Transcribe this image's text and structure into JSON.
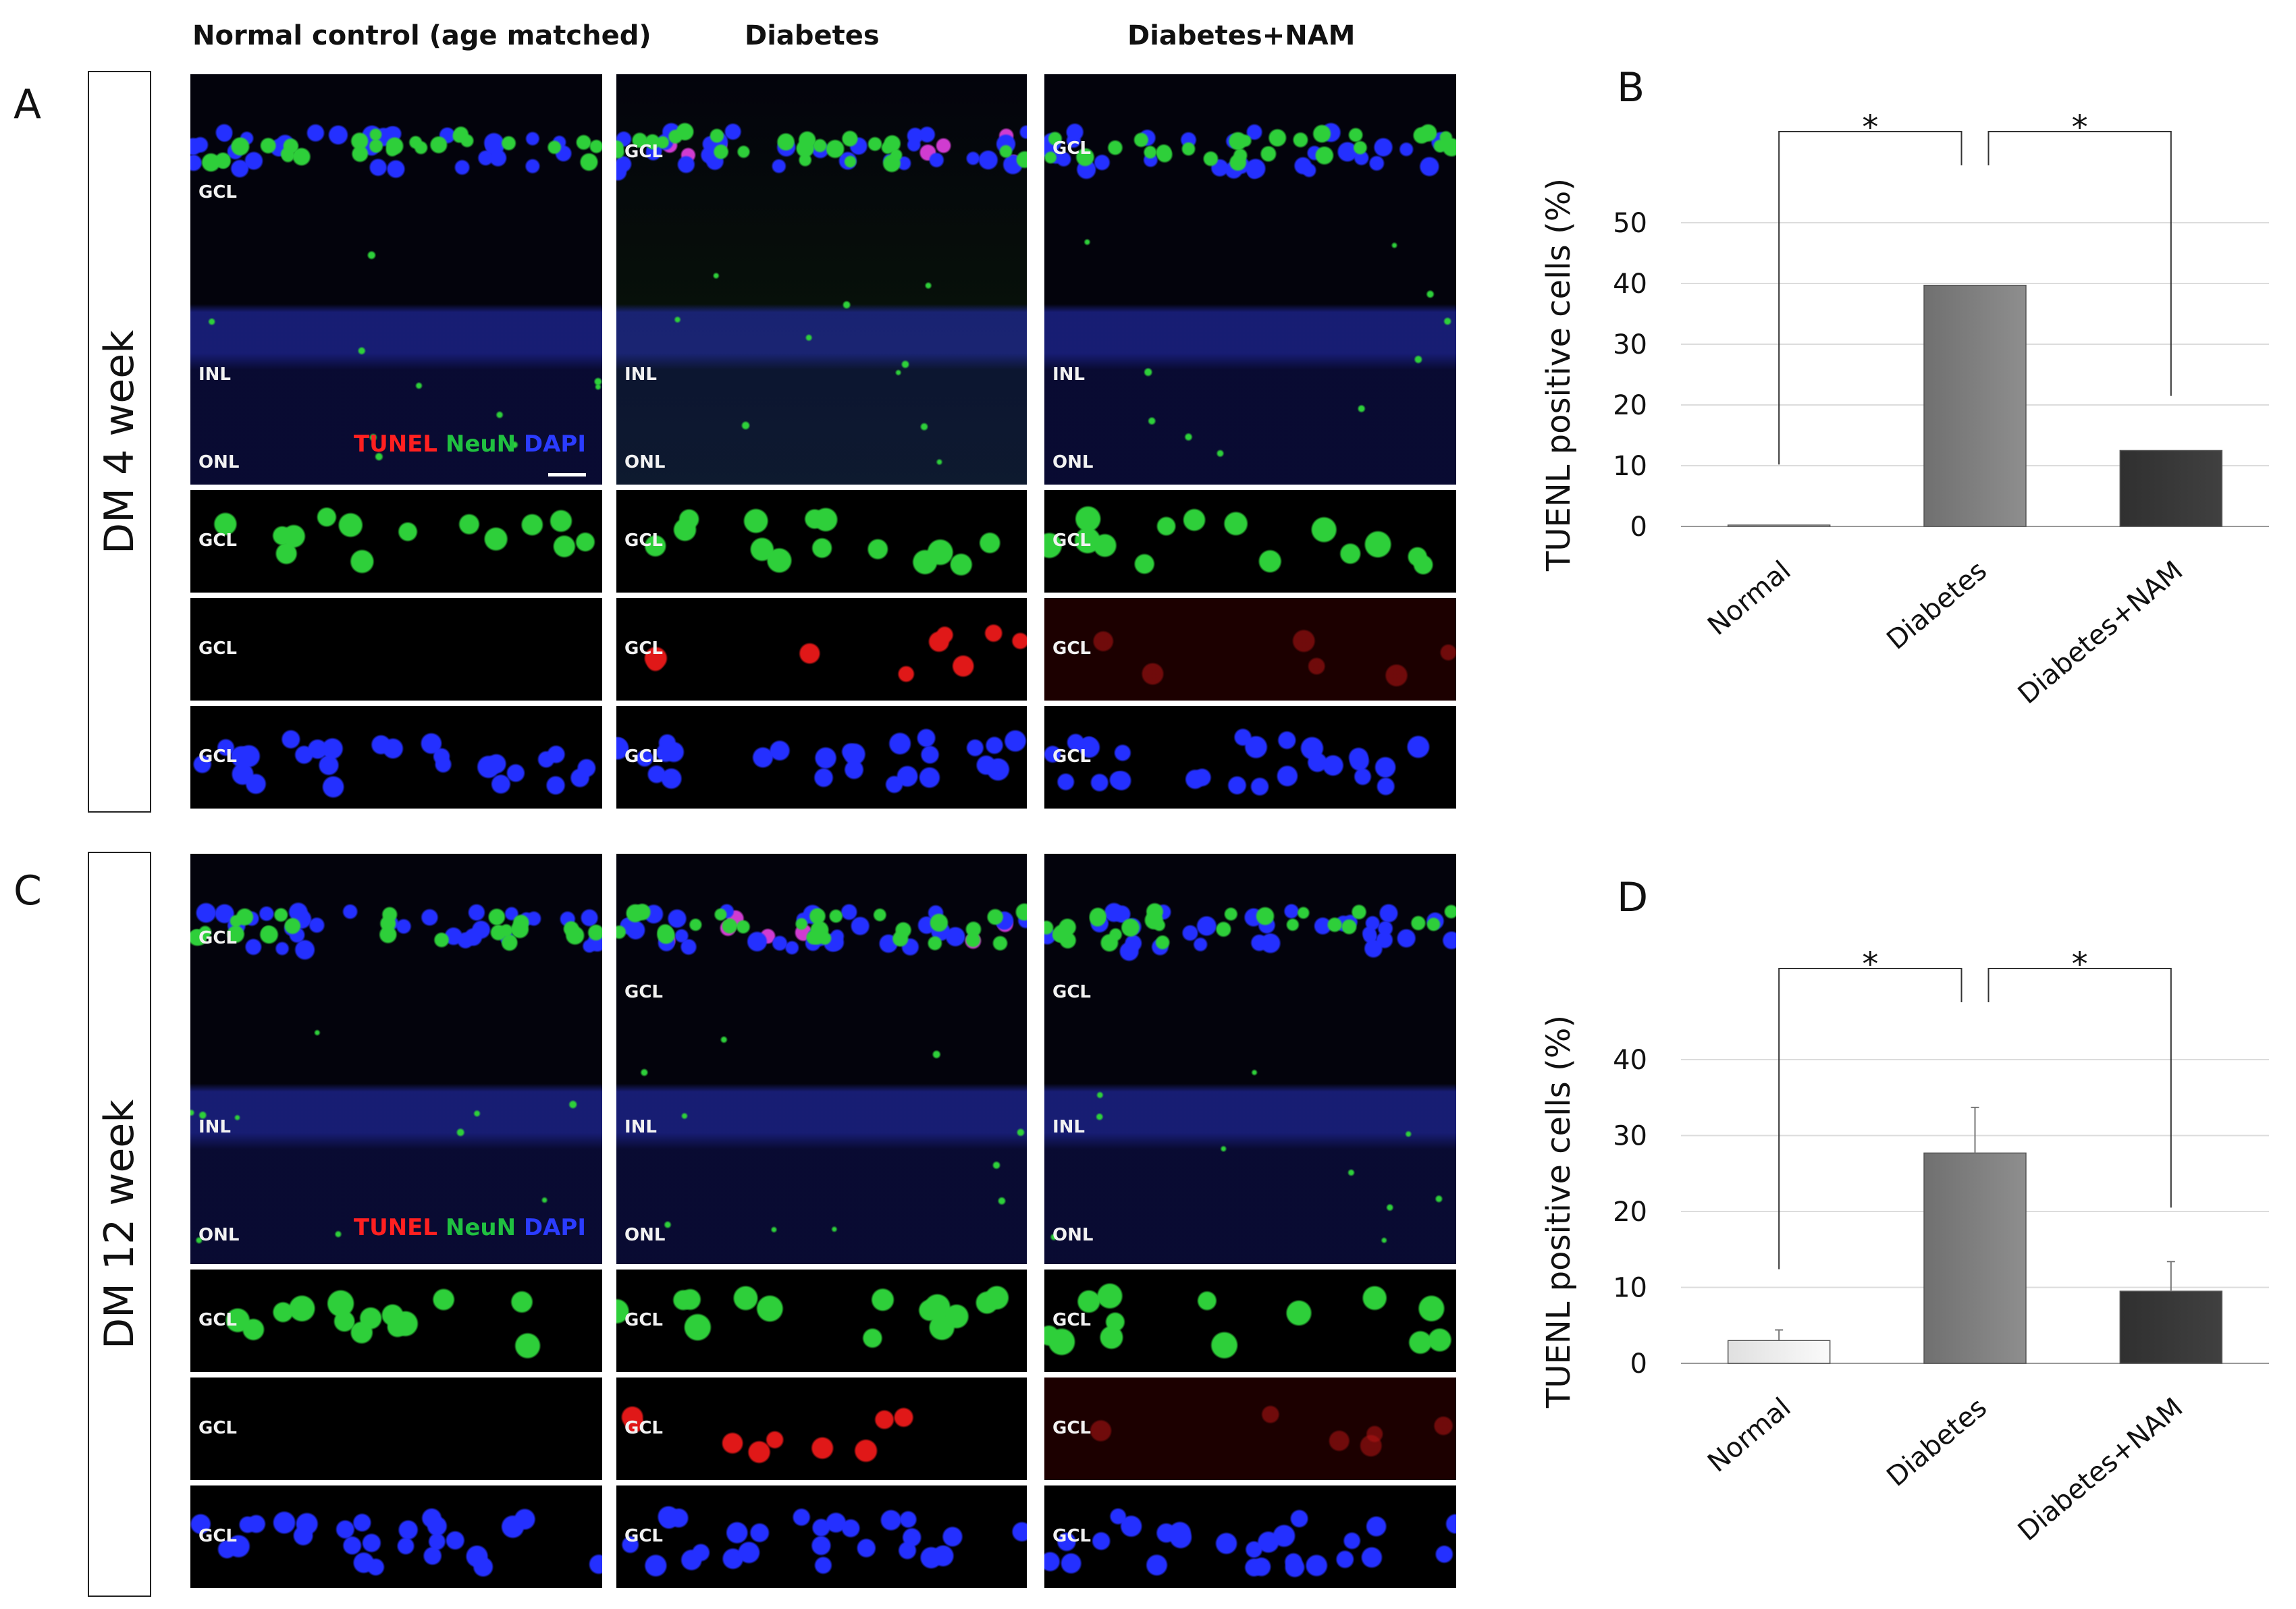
{
  "columns": [
    "Normal control (age matched)",
    "Diabetes",
    "Diabetes+NAM"
  ],
  "panel_letters": {
    "A": "A",
    "B": "B",
    "C": "C",
    "D": "D"
  },
  "rows": [
    {
      "label": "DM 4 week"
    },
    {
      "label": "DM 12 week"
    }
  ],
  "layer_labels": {
    "gcl": "GCL",
    "inl": "INL",
    "onl": "ONL"
  },
  "legend": {
    "tunel": "TUNEL",
    "neun": "NeuN",
    "dapi": "DAPI",
    "colors": {
      "tunel": "#ff2020",
      "neun": "#20c040",
      "dapi": "#2b3cff"
    }
  },
  "stain_colors": {
    "merge_bg": "#03030c",
    "green": "#2ecf3a",
    "red": "#e01818",
    "blue": "#2430ff"
  },
  "chart_data": [
    {
      "panel": "B",
      "type": "bar",
      "categories": [
        "Normal",
        "Diabetes",
        "Diabetes+NAM"
      ],
      "values": [
        0.2,
        39.7,
        12.5
      ],
      "errors": [
        0,
        0.1,
        0.1
      ],
      "ylabel": "TUENL positive cells (%)",
      "ylim": [
        0,
        50
      ],
      "yticks": [
        0,
        10,
        20,
        30,
        40,
        50
      ],
      "grid": true,
      "significance": [
        {
          "from": "Normal",
          "to": "Diabetes",
          "label": "*"
        },
        {
          "from": "Diabetes",
          "to": "Diabetes+NAM",
          "label": "*"
        }
      ],
      "bar_colors": [
        "#e0e0e0",
        "#707070",
        "#303030"
      ]
    },
    {
      "panel": "D",
      "type": "bar",
      "categories": [
        "Normal",
        "Diabetes",
        "Diabetes+NAM"
      ],
      "values": [
        3.0,
        27.7,
        9.5
      ],
      "errors": [
        1.4,
        6.0,
        3.9
      ],
      "ylabel": "TUENL positive cells (%)",
      "ylim": [
        0,
        40
      ],
      "yticks": [
        0,
        10,
        20,
        30,
        40
      ],
      "grid": true,
      "significance": [
        {
          "from": "Normal",
          "to": "Diabetes",
          "label": "*"
        },
        {
          "from": "Diabetes",
          "to": "Diabetes+NAM",
          "label": "*"
        }
      ],
      "bar_colors": [
        "#e0e0e0",
        "#707070",
        "#303030"
      ]
    }
  ]
}
